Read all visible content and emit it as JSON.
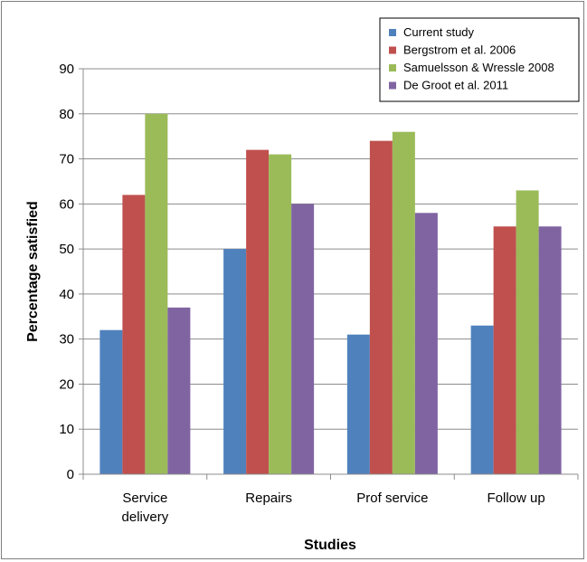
{
  "chart_data": {
    "type": "bar",
    "title": "",
    "xlabel": "Studies",
    "ylabel": "Percentage satisfied",
    "ylim": [
      0,
      90
    ],
    "yticks": [
      0,
      10,
      20,
      30,
      40,
      50,
      60,
      70,
      80,
      90
    ],
    "grid": true,
    "legend_position": "top-right",
    "categories": [
      [
        "Service",
        "delivery"
      ],
      [
        "Repairs"
      ],
      [
        "Prof service"
      ],
      [
        "Follow up"
      ]
    ],
    "series": [
      {
        "name": "Current study",
        "color": "#4f81bd",
        "values": [
          32,
          50,
          31,
          33
        ]
      },
      {
        "name": "Bergstrom et al. 2006",
        "color": "#c0504d",
        "values": [
          62,
          72,
          74,
          55
        ]
      },
      {
        "name": "Samuelsson & Wressle 2008",
        "color": "#9bbb59",
        "values": [
          80,
          71,
          76,
          63
        ]
      },
      {
        "name": "De Groot et al. 2011",
        "color": "#8064a2",
        "values": [
          37,
          60,
          58,
          55
        ]
      }
    ]
  }
}
